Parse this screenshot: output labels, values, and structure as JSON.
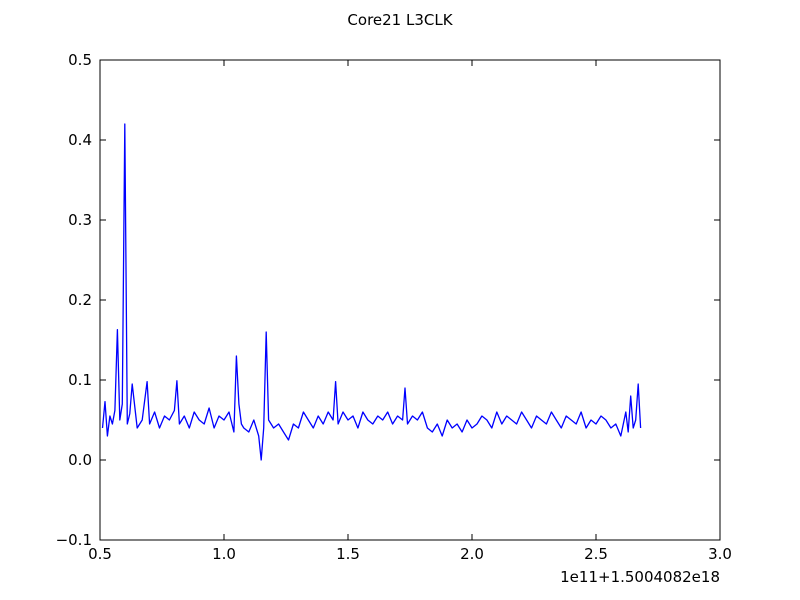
{
  "chart_data": {
    "type": "line",
    "title": "Core21 L3CLK",
    "xlabel": "",
    "ylabel": "",
    "x_offset_label": "1e11+1.5004082e18",
    "xlim": [
      0.5,
      3.0
    ],
    "ylim": [
      -0.1,
      0.5
    ],
    "x_ticks": [
      0.5,
      1.0,
      1.5,
      2.0,
      2.5,
      3.0
    ],
    "x_tick_labels": [
      "0.5",
      "1.0",
      "1.5",
      "2.0",
      "2.5",
      "3.0"
    ],
    "y_ticks": [
      -0.1,
      0.0,
      0.1,
      0.2,
      0.3,
      0.4,
      0.5
    ],
    "y_tick_labels": [
      "−0.1",
      "0.0",
      "0.1",
      "0.2",
      "0.3",
      "0.4",
      "0.5"
    ],
    "grid": false,
    "series_color": "#0000ff",
    "series": [
      {
        "x": [
          0.51,
          0.52,
          0.53,
          0.54,
          0.55,
          0.56,
          0.57,
          0.58,
          0.59,
          0.6,
          0.61,
          0.62,
          0.63,
          0.65,
          0.67,
          0.69,
          0.7,
          0.72,
          0.74,
          0.76,
          0.78,
          0.8,
          0.81,
          0.82,
          0.84,
          0.86,
          0.88,
          0.9,
          0.92,
          0.94,
          0.96,
          0.98,
          1.0,
          1.02,
          1.04,
          1.05,
          1.06,
          1.07,
          1.08,
          1.1,
          1.12,
          1.14,
          1.15,
          1.16,
          1.17,
          1.18,
          1.2,
          1.22,
          1.24,
          1.26,
          1.28,
          1.3,
          1.32,
          1.34,
          1.36,
          1.38,
          1.4,
          1.42,
          1.44,
          1.45,
          1.46,
          1.48,
          1.5,
          1.52,
          1.54,
          1.56,
          1.58,
          1.6,
          1.62,
          1.64,
          1.66,
          1.68,
          1.7,
          1.72,
          1.73,
          1.74,
          1.76,
          1.78,
          1.8,
          1.82,
          1.84,
          1.86,
          1.88,
          1.9,
          1.92,
          1.94,
          1.96,
          1.98,
          2.0,
          2.02,
          2.04,
          2.06,
          2.08,
          2.1,
          2.12,
          2.14,
          2.16,
          2.18,
          2.2,
          2.22,
          2.24,
          2.26,
          2.28,
          2.3,
          2.32,
          2.34,
          2.36,
          2.38,
          2.4,
          2.42,
          2.44,
          2.46,
          2.48,
          2.5,
          2.52,
          2.54,
          2.56,
          2.58,
          2.6,
          2.62,
          2.63,
          2.64,
          2.65,
          2.66,
          2.67,
          2.68
        ],
        "values": [
          0.04,
          0.073,
          0.03,
          0.055,
          0.045,
          0.062,
          0.163,
          0.05,
          0.07,
          0.42,
          0.045,
          0.058,
          0.095,
          0.04,
          0.05,
          0.098,
          0.045,
          0.06,
          0.04,
          0.055,
          0.05,
          0.062,
          0.099,
          0.045,
          0.055,
          0.04,
          0.06,
          0.05,
          0.045,
          0.065,
          0.04,
          0.055,
          0.05,
          0.06,
          0.035,
          0.13,
          0.07,
          0.045,
          0.04,
          0.035,
          0.05,
          0.03,
          0.0,
          0.04,
          0.16,
          0.05,
          0.04,
          0.045,
          0.035,
          0.025,
          0.045,
          0.04,
          0.06,
          0.05,
          0.04,
          0.055,
          0.045,
          0.06,
          0.05,
          0.098,
          0.045,
          0.06,
          0.05,
          0.055,
          0.04,
          0.06,
          0.05,
          0.045,
          0.055,
          0.05,
          0.06,
          0.045,
          0.055,
          0.05,
          0.09,
          0.045,
          0.055,
          0.05,
          0.06,
          0.04,
          0.035,
          0.045,
          0.03,
          0.05,
          0.04,
          0.045,
          0.035,
          0.05,
          0.04,
          0.045,
          0.055,
          0.05,
          0.04,
          0.06,
          0.045,
          0.055,
          0.05,
          0.045,
          0.06,
          0.05,
          0.04,
          0.055,
          0.05,
          0.045,
          0.06,
          0.05,
          0.04,
          0.055,
          0.05,
          0.045,
          0.06,
          0.04,
          0.05,
          0.045,
          0.055,
          0.05,
          0.04,
          0.045,
          0.03,
          0.06,
          0.035,
          0.08,
          0.04,
          0.05,
          0.095,
          0.04
        ]
      }
    ]
  }
}
